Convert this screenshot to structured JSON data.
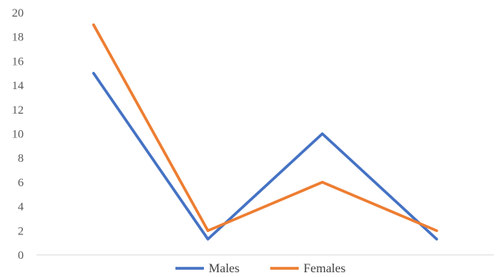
{
  "chart_data": {
    "type": "line",
    "categories": [
      "",
      "",
      "",
      ""
    ],
    "x": [
      1,
      2,
      3,
      4
    ],
    "series": [
      {
        "name": "Males",
        "color": "#4472C4",
        "values": [
          15,
          1.3,
          10,
          1.3
        ]
      },
      {
        "name": "Females",
        "color": "#ED7D31",
        "values": [
          19,
          2,
          6,
          2
        ]
      }
    ],
    "title": "",
    "xlabel": "",
    "ylabel": "",
    "ylim": [
      0,
      20
    ],
    "yticks": [
      0,
      2,
      4,
      6,
      8,
      10,
      12,
      14,
      16,
      18,
      20
    ],
    "grid": false,
    "legend_position": "bottom"
  }
}
